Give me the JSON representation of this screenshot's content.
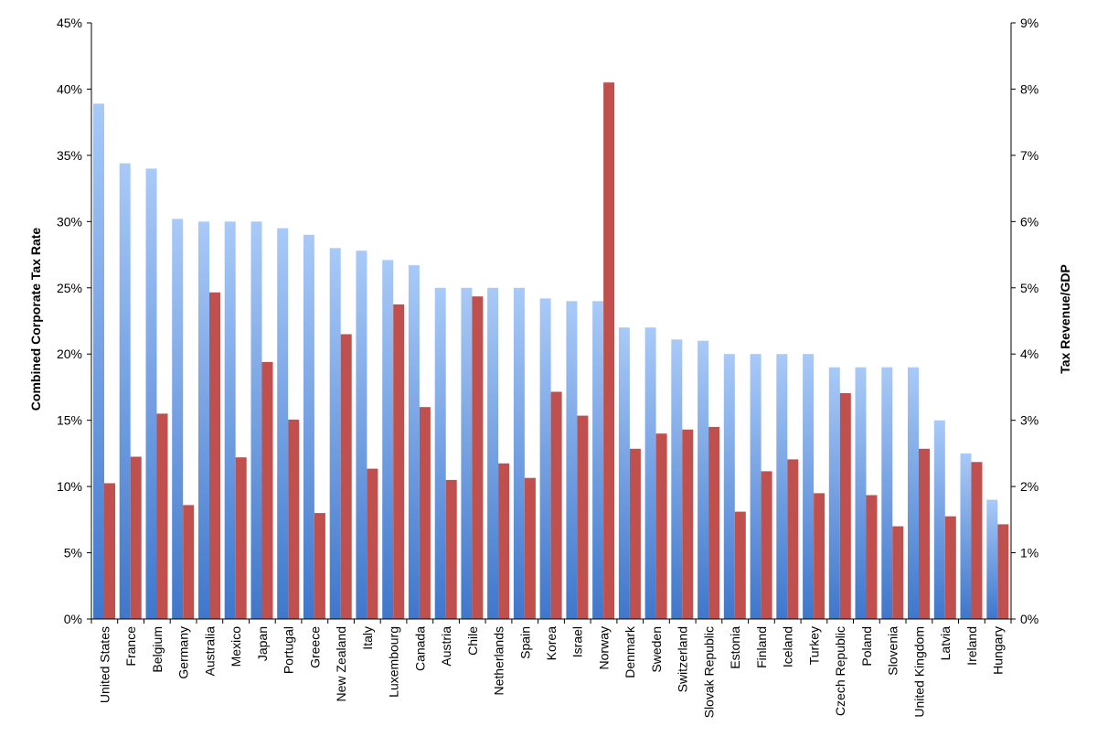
{
  "chart_data": {
    "type": "bar",
    "title": "",
    "xlabel": "",
    "ylabel": "Combined Corporate Tax Rate",
    "y2label": "Tax Revenue/GDP",
    "ylim": [
      0,
      45
    ],
    "y2lim": [
      0,
      9
    ],
    "yticks": [
      "0%",
      "5%",
      "10%",
      "15%",
      "20%",
      "25%",
      "30%",
      "35%",
      "40%",
      "45%"
    ],
    "y2ticks": [
      "0%",
      "1%",
      "2%",
      "3%",
      "4%",
      "5%",
      "6%",
      "7%",
      "8%",
      "9%"
    ],
    "grid": false,
    "legend": "none",
    "categories": [
      "United States",
      "France",
      "Belgium",
      "Germany",
      "Australia",
      "Mexico",
      "Japan",
      "Portugal",
      "Greece",
      "New Zealand",
      "Italy",
      "Luxembourg",
      "Canada",
      "Austria",
      "Chile",
      "Netherlands",
      "Spain",
      "Korea",
      "Israel",
      "Norway",
      "Denmark",
      "Sweden",
      "Switzerland",
      "Slovak Republic",
      "Estonia",
      "Finland",
      "Iceland",
      "Turkey",
      "Czech Republic",
      "Poland",
      "Slovenia",
      "United Kingdom",
      "Latvia",
      "Ireland",
      "Hungary"
    ],
    "series": [
      {
        "axis": "left",
        "color": "#4a80d0",
        "values": [
          38.9,
          34.4,
          34.0,
          30.2,
          30.0,
          30.0,
          30.0,
          29.5,
          29.0,
          28.0,
          27.8,
          27.1,
          26.7,
          25.0,
          25.0,
          25.0,
          25.0,
          24.2,
          24.0,
          24.0,
          22.0,
          22.0,
          21.1,
          21.0,
          20.0,
          20.0,
          20.0,
          20.0,
          19.0,
          19.0,
          19.0,
          19.0,
          15.0,
          12.5,
          9.0
        ]
      },
      {
        "axis": "right",
        "color": "#c0504d",
        "values": [
          2.05,
          2.45,
          3.1,
          1.72,
          4.93,
          2.44,
          3.88,
          3.01,
          1.6,
          4.3,
          2.27,
          4.75,
          3.2,
          2.1,
          4.87,
          2.35,
          2.13,
          3.43,
          3.07,
          8.1,
          2.57,
          2.8,
          2.86,
          2.9,
          1.62,
          2.23,
          2.41,
          1.9,
          3.41,
          1.87,
          1.4,
          2.57,
          1.55,
          2.37,
          1.43
        ]
      }
    ]
  }
}
